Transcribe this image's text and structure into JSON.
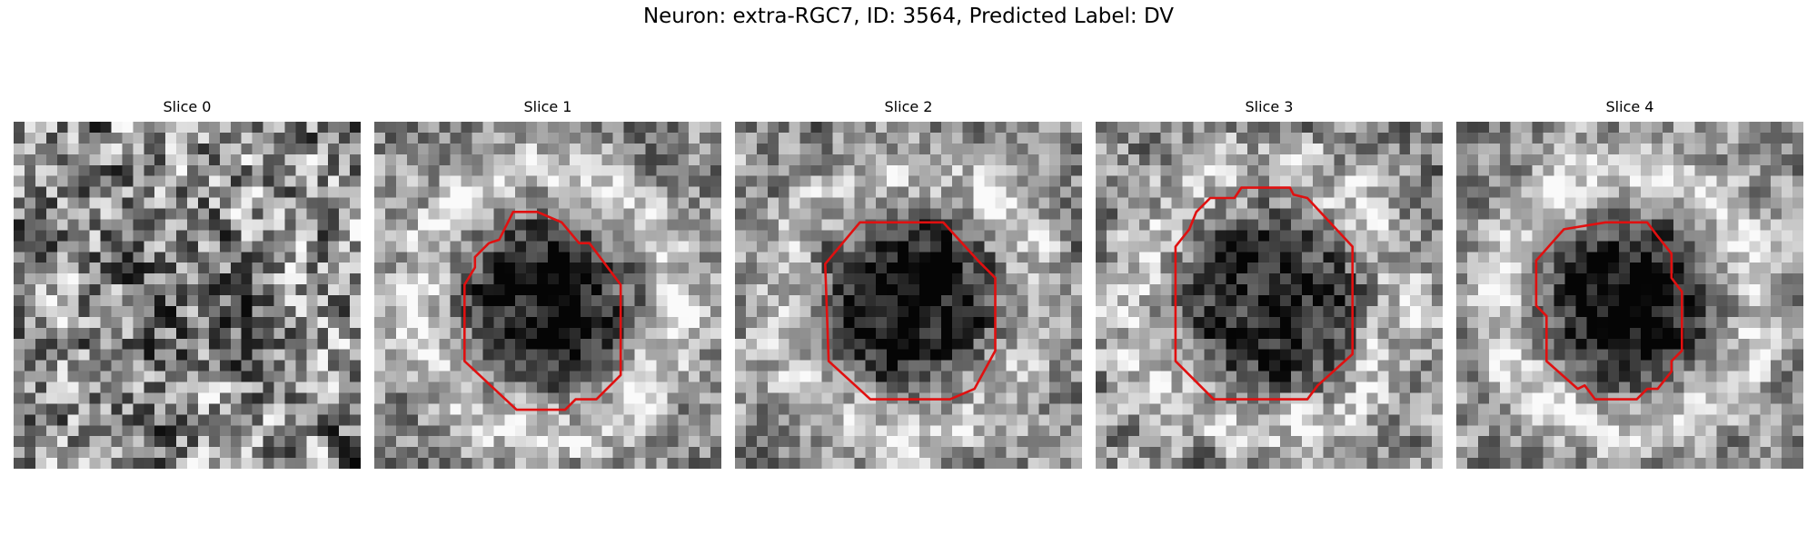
{
  "figure": {
    "title": "Neuron: extra-RGC7, ID: 3564, Predicted Label: DV",
    "contour_color": "#e01010"
  },
  "slices": [
    {
      "label": "Slice 0",
      "seed": 7,
      "blob": 0.12,
      "ring": 0.02,
      "contrast": 0.85,
      "contour": []
    },
    {
      "label": "Slice 1",
      "seed": 11,
      "blob": 0.7,
      "ring": 0.28,
      "contrast": 0.55,
      "contour": [
        [
          0.33,
          0.35
        ],
        [
          0.36,
          0.34
        ],
        [
          0.4,
          0.26
        ],
        [
          0.47,
          0.26
        ],
        [
          0.54,
          0.29
        ],
        [
          0.59,
          0.35
        ],
        [
          0.62,
          0.35
        ],
        [
          0.71,
          0.47
        ],
        [
          0.71,
          0.73
        ],
        [
          0.64,
          0.8
        ],
        [
          0.58,
          0.8
        ],
        [
          0.55,
          0.83
        ],
        [
          0.41,
          0.83
        ],
        [
          0.26,
          0.69
        ],
        [
          0.26,
          0.47
        ],
        [
          0.29,
          0.42
        ],
        [
          0.29,
          0.39
        ]
      ]
    },
    {
      "label": "Slice 2",
      "seed": 19,
      "blob": 0.66,
      "ring": 0.22,
      "contrast": 0.55,
      "contour": [
        [
          0.36,
          0.29
        ],
        [
          0.43,
          0.29
        ],
        [
          0.6,
          0.29
        ],
        [
          0.7,
          0.4
        ],
        [
          0.75,
          0.45
        ],
        [
          0.75,
          0.66
        ],
        [
          0.69,
          0.77
        ],
        [
          0.62,
          0.8
        ],
        [
          0.39,
          0.8
        ],
        [
          0.27,
          0.69
        ],
        [
          0.26,
          0.41
        ]
      ]
    },
    {
      "label": "Slice 3",
      "seed": 23,
      "blob": 0.6,
      "ring": 0.24,
      "contrast": 0.6,
      "contour": [
        [
          0.4,
          0.22
        ],
        [
          0.42,
          0.19
        ],
        [
          0.56,
          0.19
        ],
        [
          0.57,
          0.21
        ],
        [
          0.61,
          0.22
        ],
        [
          0.74,
          0.36
        ],
        [
          0.74,
          0.67
        ],
        [
          0.64,
          0.76
        ],
        [
          0.61,
          0.8
        ],
        [
          0.34,
          0.8
        ],
        [
          0.23,
          0.69
        ],
        [
          0.23,
          0.36
        ],
        [
          0.27,
          0.31
        ],
        [
          0.29,
          0.26
        ],
        [
          0.33,
          0.22
        ],
        [
          0.36,
          0.22
        ]
      ]
    },
    {
      "label": "Slice 4",
      "seed": 31,
      "blob": 0.68,
      "ring": 0.3,
      "contrast": 0.5,
      "contour": [
        [
          0.31,
          0.31
        ],
        [
          0.43,
          0.29
        ],
        [
          0.55,
          0.29
        ],
        [
          0.58,
          0.33
        ],
        [
          0.62,
          0.38
        ],
        [
          0.62,
          0.45
        ],
        [
          0.65,
          0.49
        ],
        [
          0.65,
          0.66
        ],
        [
          0.62,
          0.69
        ],
        [
          0.62,
          0.72
        ],
        [
          0.58,
          0.77
        ],
        [
          0.55,
          0.77
        ],
        [
          0.52,
          0.8
        ],
        [
          0.4,
          0.8
        ],
        [
          0.37,
          0.76
        ],
        [
          0.35,
          0.77
        ],
        [
          0.26,
          0.69
        ],
        [
          0.26,
          0.56
        ],
        [
          0.23,
          0.53
        ],
        [
          0.23,
          0.4
        ]
      ]
    }
  ]
}
